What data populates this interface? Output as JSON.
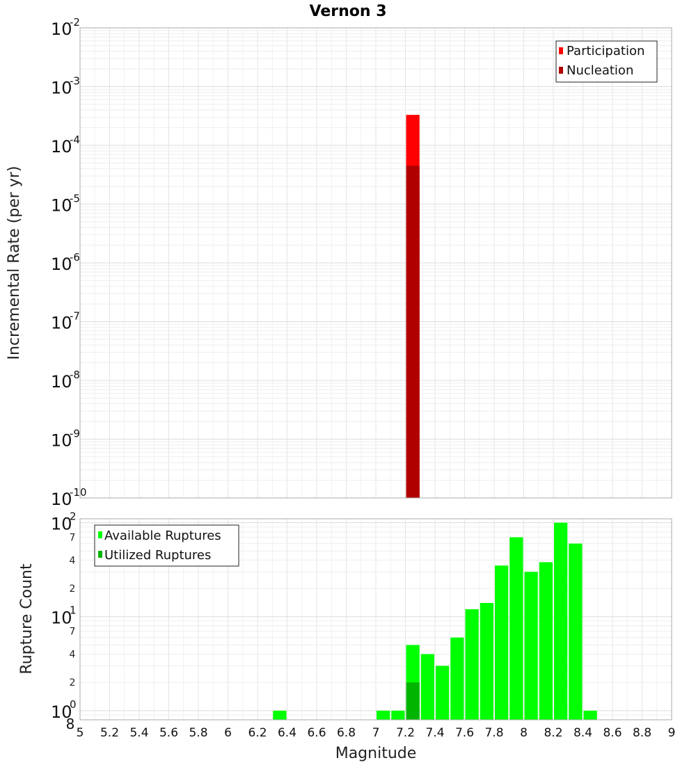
{
  "title": "Vernon 3",
  "chart_data": [
    {
      "type": "bar",
      "ylabel": "Incremental Rate (per yr)",
      "yscale": "log",
      "ylim": [
        1e-10,
        0.01
      ],
      "y_tick_labels": [
        {
          "base": "10",
          "exp": "-10"
        },
        {
          "base": "10",
          "exp": "-9"
        },
        {
          "base": "10",
          "exp": "-8"
        },
        {
          "base": "10",
          "exp": "-7"
        },
        {
          "base": "10",
          "exp": "-6"
        },
        {
          "base": "10",
          "exp": "-5"
        },
        {
          "base": "10",
          "exp": "-4"
        },
        {
          "base": "10",
          "exp": "-3"
        },
        {
          "base": "10",
          "exp": "-2"
        }
      ],
      "xlim": [
        5,
        9
      ],
      "legend": {
        "position": "top-right",
        "entries": [
          "Participation",
          "Nucleation"
        ]
      },
      "series": [
        {
          "name": "Participation",
          "color": "#ff0000",
          "x": [
            7.25
          ],
          "values": [
            0.00033
          ]
        },
        {
          "name": "Nucleation",
          "color": "#b00000",
          "x": [
            7.25
          ],
          "values": [
            4.5e-05
          ]
        }
      ]
    },
    {
      "type": "bar",
      "ylabel": "Rupture Count",
      "xlabel": "Magnitude",
      "yscale": "log",
      "ylim": [
        0.8,
        110
      ],
      "major_ticks": [
        {
          "value": 1,
          "base": "10",
          "exp": "0"
        },
        {
          "value": 10,
          "base": "10",
          "exp": "1"
        },
        {
          "value": 100,
          "base": "10",
          "exp": "2"
        }
      ],
      "minor_ticks": [
        {
          "value": 0.8,
          "label": "8"
        },
        {
          "value": 2,
          "label": "2"
        },
        {
          "value": 4,
          "label": "4"
        },
        {
          "value": 7,
          "label": "7"
        },
        {
          "value": 20,
          "label": "2"
        },
        {
          "value": 40,
          "label": "4"
        },
        {
          "value": 70,
          "label": "7"
        }
      ],
      "x_ticks": [
        "5",
        "5.2",
        "5.4",
        "5.6",
        "5.8",
        "6",
        "6.2",
        "6.4",
        "6.6",
        "6.8",
        "7",
        "7.2",
        "7.4",
        "7.6",
        "7.8",
        "8",
        "8.2",
        "8.4",
        "8.6",
        "8.8",
        "9"
      ],
      "xlim": [
        5,
        9
      ],
      "legend": {
        "position": "top-left",
        "entries": [
          "Available Ruptures",
          "Utilized Ruptures"
        ]
      },
      "series": [
        {
          "name": "Available Ruptures",
          "color": "#00ff00",
          "x": [
            6.35,
            7.05,
            7.15,
            7.25,
            7.35,
            7.45,
            7.55,
            7.65,
            7.75,
            7.85,
            7.95,
            8.05,
            8.15,
            8.25,
            8.35,
            8.45
          ],
          "values": [
            1,
            1,
            1,
            5,
            4,
            3,
            6,
            12,
            14,
            35,
            70,
            30,
            38,
            100,
            60,
            1
          ]
        },
        {
          "name": "Utilized Ruptures",
          "color": "#00b400",
          "x": [
            7.25
          ],
          "values": [
            2
          ]
        }
      ]
    }
  ]
}
